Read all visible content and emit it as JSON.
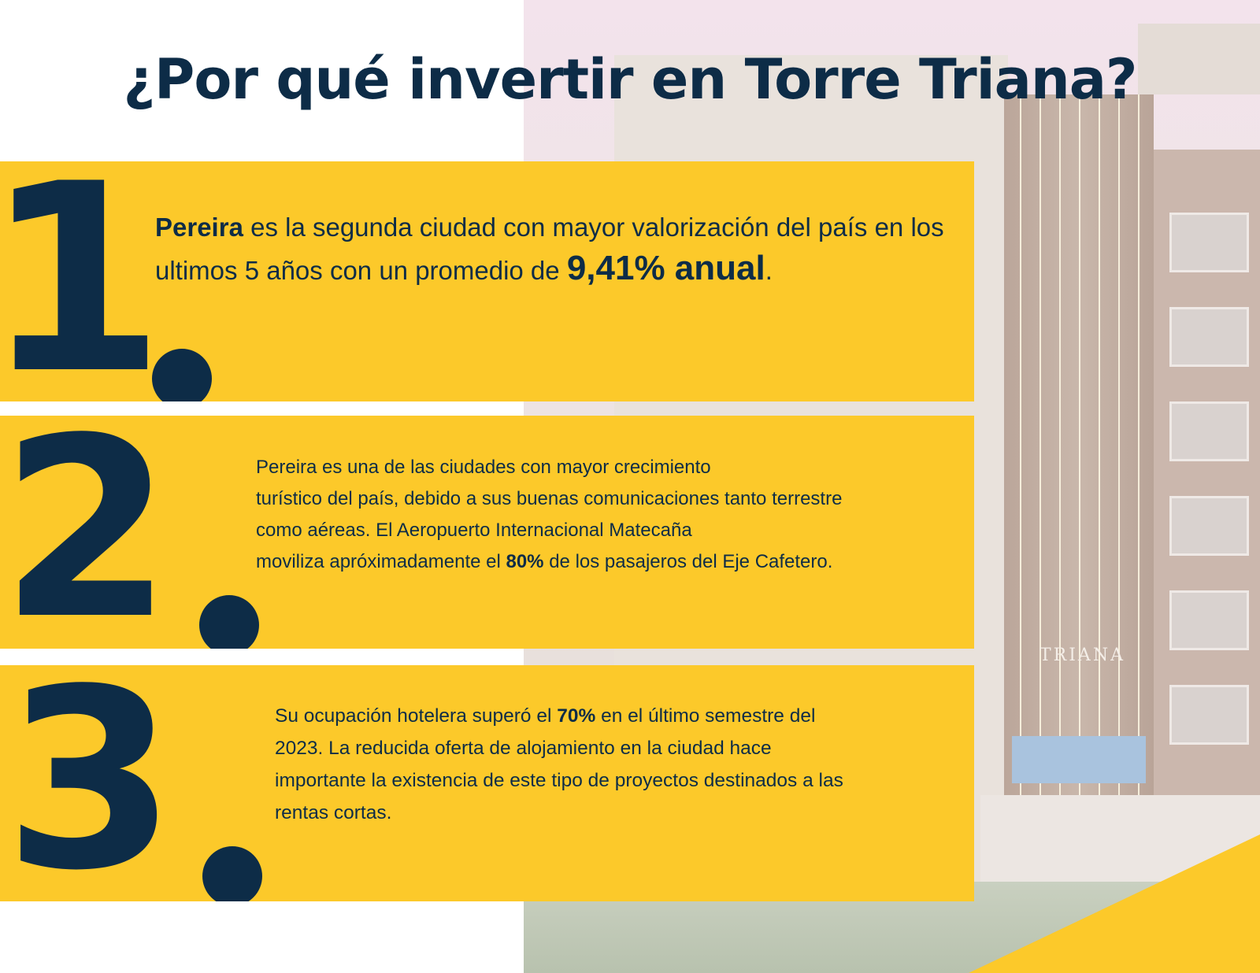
{
  "title": "¿Por qué invertir en Torre Triana?",
  "background": {
    "sign_text": "TRIANA",
    "colors": {
      "navy": "#0d2c47",
      "yellow": "#fcc92a"
    }
  },
  "points": [
    {
      "number": "1",
      "parts": [
        {
          "text": "Pereira",
          "style": "bold"
        },
        {
          "text": " es la segunda ciudad con mayor valorización del país en los ultimos 5 años con un promedio de ",
          "style": "normal"
        },
        {
          "text": "9,41% anual",
          "style": "big"
        },
        {
          "text": ".",
          "style": "normal"
        }
      ]
    },
    {
      "number": "2",
      "lines": [
        "Pereira es una de las ciudades con mayor crecimiento",
        "turístico del país, debido a sus buenas comunicaciones tanto terrestre",
        "como aéreas. El Aeropuerto Internacional Matecaña"
      ],
      "last_line": {
        "before": "moviliza apróximadamente el ",
        "bold": "80%",
        "after": " de los pasajeros del Eje Cafetero."
      }
    },
    {
      "number": "3",
      "first_line": {
        "before": "Su ocupación hotelera superó el ",
        "bold": "70%",
        "after": " en el último semestre del"
      },
      "lines": [
        "2023. La reducida oferta de alojamiento en la ciudad hace",
        "importante la existencia de este tipo de proyectos destinados a las",
        "rentas cortas."
      ]
    }
  ]
}
